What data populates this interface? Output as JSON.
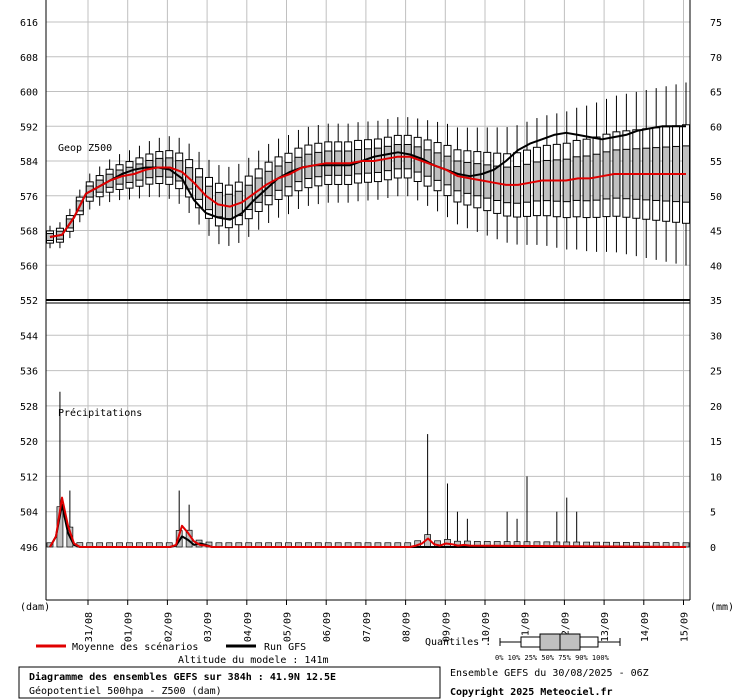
{
  "chart_data": [
    {
      "type": "box",
      "name_label": "Geop Z500",
      "left_axis_unit": "(dam)",
      "ylim_left": [
        552,
        616
      ],
      "left_ticks": [
        616,
        608,
        600,
        592,
        584,
        576,
        568,
        560,
        552
      ],
      "right_ticks": [
        75,
        70,
        65,
        60,
        55,
        50,
        45,
        40,
        35
      ],
      "steps": 64,
      "mean_series": [
        [
          0,
          566.5
        ],
        [
          2,
          567.0
        ],
        [
          4,
          571.0
        ],
        [
          6,
          576.5
        ],
        [
          8,
          578.0
        ],
        [
          10,
          579.5
        ],
        [
          12,
          580.5
        ],
        [
          14,
          581.0
        ],
        [
          16,
          582.0
        ],
        [
          18,
          582.5
        ],
        [
          20,
          582.5
        ],
        [
          22,
          581.5
        ],
        [
          24,
          579.0
        ],
        [
          26,
          576.0
        ],
        [
          28,
          574.0
        ],
        [
          30,
          573.5
        ],
        [
          32,
          574.5
        ],
        [
          34,
          576.5
        ],
        [
          36,
          578.5
        ],
        [
          38,
          580.0
        ],
        [
          40,
          581.0
        ],
        [
          42,
          582.5
        ],
        [
          44,
          583.0
        ],
        [
          46,
          583.5
        ],
        [
          48,
          583.5
        ],
        [
          50,
          583.5
        ],
        [
          52,
          584.0
        ],
        [
          54,
          584.0
        ],
        [
          56,
          584.5
        ],
        [
          58,
          585.0
        ],
        [
          60,
          585.0
        ],
        [
          62,
          584.0
        ],
        [
          64,
          583.0
        ],
        [
          66,
          582.0
        ],
        [
          68,
          580.5
        ],
        [
          70,
          580.0
        ],
        [
          72,
          579.5
        ],
        [
          74,
          579.0
        ],
        [
          76,
          578.5
        ],
        [
          78,
          578.5
        ],
        [
          80,
          579.0
        ],
        [
          82,
          579.5
        ],
        [
          84,
          579.5
        ],
        [
          86,
          579.5
        ],
        [
          88,
          580.0
        ],
        [
          90,
          580.0
        ],
        [
          92,
          580.5
        ],
        [
          94,
          581.0
        ],
        [
          96,
          581.0
        ],
        [
          98,
          581.0
        ],
        [
          100,
          581.0
        ],
        [
          102,
          581.0
        ],
        [
          104,
          581.0
        ],
        [
          106,
          581.0
        ]
      ],
      "gfs_run_series": [
        [
          0,
          566.5
        ],
        [
          2,
          567.0
        ],
        [
          4,
          571.0
        ],
        [
          6,
          576.5
        ],
        [
          8,
          578.0
        ],
        [
          10,
          579.5
        ],
        [
          12,
          581.0
        ],
        [
          14,
          582.0
        ],
        [
          16,
          582.5
        ],
        [
          18,
          582.5
        ],
        [
          20,
          582.0
        ],
        [
          22,
          580.0
        ],
        [
          24,
          575.0
        ],
        [
          26,
          572.0
        ],
        [
          28,
          571.0
        ],
        [
          30,
          570.5
        ],
        [
          32,
          572.0
        ],
        [
          34,
          575.0
        ],
        [
          36,
          577.5
        ],
        [
          38,
          580.0
        ],
        [
          40,
          581.5
        ],
        [
          42,
          582.5
        ],
        [
          44,
          583.0
        ],
        [
          46,
          583.0
        ],
        [
          48,
          583.0
        ],
        [
          50,
          583.0
        ],
        [
          52,
          584.0
        ],
        [
          54,
          585.0
        ],
        [
          56,
          585.5
        ],
        [
          58,
          586.0
        ],
        [
          60,
          585.5
        ],
        [
          62,
          584.5
        ],
        [
          64,
          583.0
        ],
        [
          66,
          582.0
        ],
        [
          68,
          581.0
        ],
        [
          70,
          580.5
        ],
        [
          72,
          581.0
        ],
        [
          74,
          582.0
        ],
        [
          76,
          584.0
        ],
        [
          78,
          586.5
        ],
        [
          80,
          588.0
        ],
        [
          82,
          589.0
        ],
        [
          84,
          590.0
        ],
        [
          86,
          590.5
        ],
        [
          88,
          590.0
        ],
        [
          90,
          589.5
        ],
        [
          92,
          589.0
        ],
        [
          94,
          589.5
        ],
        [
          96,
          590.0
        ],
        [
          98,
          591.0
        ],
        [
          100,
          591.5
        ],
        [
          102,
          592.0
        ],
        [
          104,
          592.0
        ],
        [
          106,
          592.0
        ]
      ]
    },
    {
      "type": "box",
      "name_label": "Précipitations",
      "right_axis_unit": "(mm)",
      "ylim_right": [
        0,
        35
      ],
      "right_ticks": [
        35,
        30,
        25,
        20,
        15,
        10,
        5,
        0
      ],
      "left_ticks": [
        552,
        544,
        536,
        528,
        520,
        512,
        504,
        496
      ],
      "mean_series": [
        [
          0,
          0
        ],
        [
          1,
          1.5
        ],
        [
          2,
          7.0
        ],
        [
          3,
          3.0
        ],
        [
          4,
          0.5
        ],
        [
          5,
          0
        ],
        [
          20,
          0
        ],
        [
          21,
          0.3
        ],
        [
          22,
          3.0
        ],
        [
          23,
          2.0
        ],
        [
          24,
          0.8
        ],
        [
          25,
          0.3
        ],
        [
          26,
          0.2
        ],
        [
          27,
          0
        ],
        [
          60,
          0
        ],
        [
          61,
          0.2
        ],
        [
          62,
          0.5
        ],
        [
          63,
          1.2
        ],
        [
          64,
          0.4
        ],
        [
          65,
          0.2
        ],
        [
          66,
          0.5
        ],
        [
          67,
          0.4
        ],
        [
          68,
          0.2
        ],
        [
          69,
          0.3
        ],
        [
          70,
          0.2
        ],
        [
          106,
          0
        ]
      ],
      "gfs_run_series": [
        [
          0,
          0
        ],
        [
          1,
          1.5
        ],
        [
          2,
          6.0
        ],
        [
          3,
          2.0
        ],
        [
          4,
          0.3
        ],
        [
          5,
          0
        ],
        [
          20,
          0
        ],
        [
          21,
          0.2
        ],
        [
          22,
          1.5
        ],
        [
          23,
          1.0
        ],
        [
          24,
          0.3
        ],
        [
          25,
          0.5
        ],
        [
          26,
          0.3
        ],
        [
          27,
          0
        ],
        [
          106,
          0
        ]
      ]
    }
  ],
  "x_dates": [
    "31/08",
    "01/09",
    "02/09",
    "03/09",
    "04/09",
    "05/09",
    "06/09",
    "07/09",
    "08/09",
    "09/09",
    "10/09",
    "11/09",
    "12/09",
    "13/09",
    "14/09",
    "15/09"
  ],
  "legend": {
    "mean_label": "Moyenne des scénarios",
    "gfs_label": "Run GFS",
    "quantiles_label": "Quantiles :",
    "quantile_ticks": "0% 10% 25% 50% 75% 90% 100%",
    "altitude": "Altitude du modele : 141m"
  },
  "footer": {
    "title": "Diagramme des ensembles GEFS sur 384h : 41.9N 12.5E",
    "subtitle": "Géopotentiel 500hpa - Z500 (dam)",
    "run": "Ensemble GEFS du 30/08/2025 - 06Z",
    "copyright": "Copyright 2025 Meteociel.fr"
  },
  "colors": {
    "mean": "#e00000",
    "gfs": "#000000",
    "box_fill": "#c0c0c0",
    "grid": "#c0c0c0"
  }
}
